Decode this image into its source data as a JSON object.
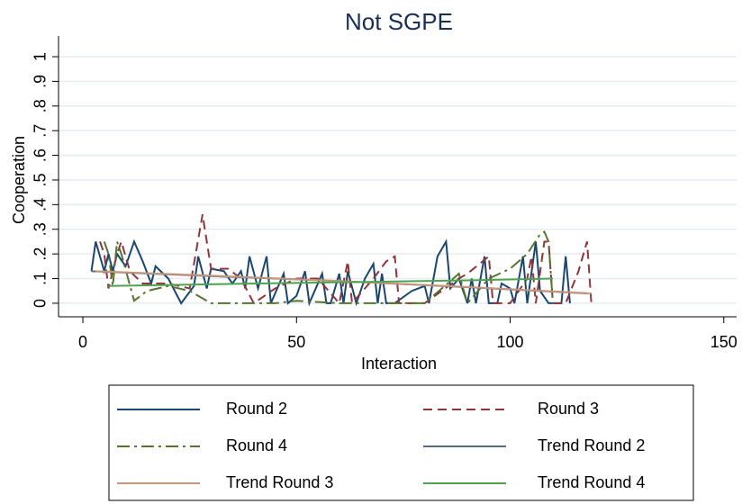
{
  "chart_data": {
    "type": "line",
    "title": "Not SGPE",
    "x_label": "Interaction",
    "y_label": "Cooperation",
    "xlim": [
      -5.7,
      153
    ],
    "xticks": [
      0,
      50,
      100,
      150
    ],
    "ylim": [
      -0.055,
      1.084
    ],
    "yticks": [
      0,
      {
        "value": 0.1,
        "label": ".1"
      },
      {
        "value": 0.2,
        "label": ".2"
      },
      {
        "value": 0.3,
        "label": ".3"
      },
      {
        "value": 0.4,
        "label": ".4"
      },
      {
        "value": 0.5,
        "label": ".5"
      },
      {
        "value": 0.6,
        "label": ".6"
      },
      {
        "value": 0.7,
        "label": ".7"
      },
      {
        "value": 0.8,
        "label": ".8"
      },
      {
        "value": 0.9,
        "label": ".9"
      },
      1
    ],
    "grid": true,
    "series": [
      {
        "name": "Round 2",
        "color": "#1a476f",
        "style": "solid",
        "x": [
          2,
          3,
          5,
          6,
          7,
          8,
          10,
          12,
          14,
          16,
          17,
          20,
          23,
          26,
          27,
          29,
          30,
          33,
          35,
          37,
          38,
          39,
          41,
          43,
          44,
          46,
          47,
          48,
          50,
          52,
          53,
          56,
          57,
          58,
          60,
          61,
          62,
          64,
          66,
          68,
          69,
          70,
          71,
          73,
          77,
          80,
          81,
          83,
          85,
          86,
          88,
          90,
          91,
          92,
          94,
          95,
          97,
          98,
          100,
          101,
          103,
          104,
          106,
          107,
          109,
          112,
          113,
          114
        ],
        "values": [
          0.13,
          0.25,
          0.13,
          0.2,
          0.13,
          0.2,
          0.15,
          0.25,
          0.17,
          0.08,
          0.15,
          0.1,
          0,
          0.07,
          0.19,
          0.06,
          0.14,
          0.13,
          0.08,
          0.13,
          0.06,
          0.19,
          0.06,
          0.19,
          0,
          0.08,
          0.12,
          0,
          0.03,
          0.13,
          0,
          0.12,
          0,
          0,
          0.12,
          0,
          0.13,
          0,
          0.1,
          0.16,
          0,
          0.12,
          0,
          0,
          0.05,
          0.07,
          0,
          0.19,
          0.25,
          0.06,
          0.1,
          0,
          0.1,
          0,
          0.19,
          0,
          0,
          0.08,
          0.06,
          0,
          0.19,
          0,
          0.25,
          0.05,
          0,
          0,
          0.19,
          0
        ]
      },
      {
        "name": "Round 3",
        "color": "#90353b",
        "style": "dash",
        "x": [
          4,
          5,
          6,
          8,
          9,
          11,
          14,
          20,
          25,
          28,
          29,
          30,
          34,
          37,
          40,
          45,
          50,
          55,
          60,
          62,
          63,
          68,
          71,
          73,
          74,
          80,
          88,
          90,
          95,
          96,
          100,
          104,
          105,
          106,
          108,
          109,
          110,
          113,
          116,
          118,
          119
        ],
        "values": [
          0.25,
          0.2,
          0.06,
          0.2,
          0.25,
          0.13,
          0.08,
          0.08,
          0.06,
          0.36,
          0.25,
          0.14,
          0.14,
          0.1,
          0,
          0.06,
          0.1,
          0.1,
          0,
          0.17,
          0,
          0.1,
          0.17,
          0.19,
          0,
          0,
          0.1,
          0.12,
          0.19,
          0,
          0,
          0.1,
          0.19,
          0,
          0.25,
          0.25,
          0,
          0,
          0.13,
          0.25,
          0
        ]
      },
      {
        "name": "Round 4",
        "color": "#55752f",
        "style": "dashdot",
        "x": [
          5,
          6,
          7,
          8,
          9,
          12,
          15,
          20,
          25,
          30,
          35,
          40,
          45,
          50,
          60,
          70,
          80,
          88,
          90,
          95,
          100,
          104,
          107,
          108,
          109,
          110
        ],
        "values": [
          0.25,
          0.2,
          0.07,
          0.25,
          0.2,
          0.01,
          0.05,
          0.07,
          0.05,
          0,
          0,
          0,
          0,
          0.01,
          0,
          0,
          0,
          0.12,
          0,
          0.1,
          0.14,
          0.2,
          0.28,
          0.29,
          0.25,
          0
        ]
      },
      {
        "name": "Trend Round 2",
        "color": "#5b6a8a",
        "style": "solid",
        "x": [
          2,
          30,
          60,
          90,
          118
        ],
        "values": [
          0.13,
          0.11,
          0.09,
          0.065,
          0.04
        ]
      },
      {
        "name": "Trend Round 3",
        "color": "#c4967a",
        "style": "solid",
        "x": [
          3,
          30,
          60,
          90,
          119
        ],
        "values": [
          0.13,
          0.112,
          0.09,
          0.066,
          0.04
        ]
      },
      {
        "name": "Trend Round 4",
        "color": "#4ea34e",
        "style": "solid",
        "x": [
          6,
          30,
          60,
          90,
          110
        ],
        "values": [
          0.07,
          0.077,
          0.085,
          0.093,
          0.1
        ]
      }
    ]
  }
}
